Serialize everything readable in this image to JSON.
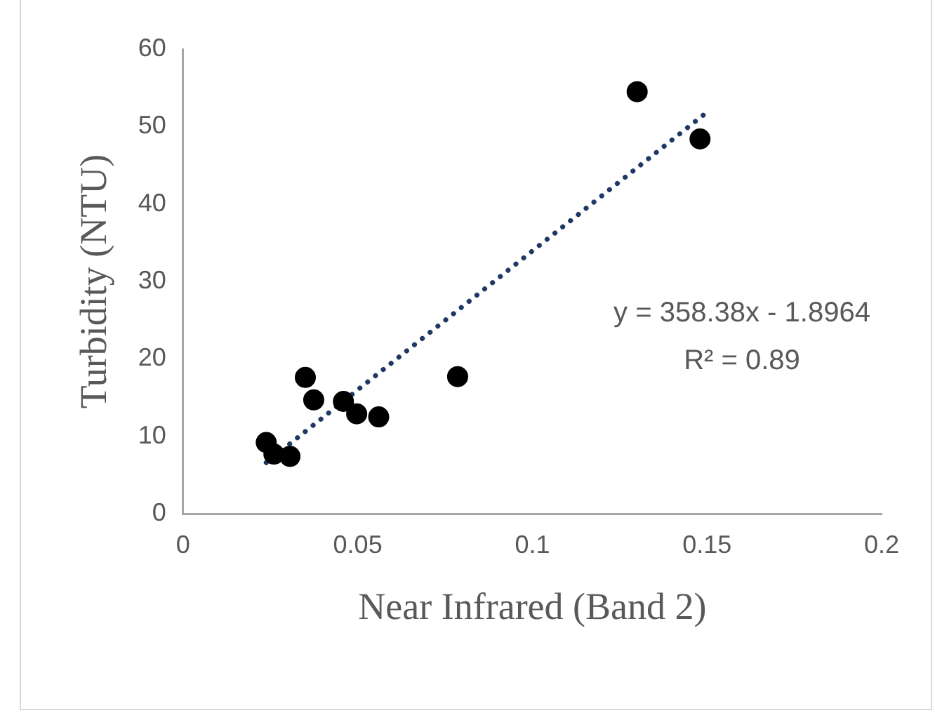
{
  "chart_data": {
    "type": "scatter",
    "xlabel": "Near Infrared (Band 2)",
    "ylabel": "Turbidity (NTU)",
    "x": [
      0.0238,
      0.026,
      0.0306,
      0.035,
      0.0374,
      0.0459,
      0.0497,
      0.056,
      0.0786,
      0.13,
      0.148
    ],
    "series": [
      {
        "type": "scatter",
        "color": "#000000",
        "values": [
          9.2,
          7.7,
          7.4,
          17.6,
          14.7,
          14.5,
          12.9,
          12.5,
          17.7,
          54.5,
          48.4
        ]
      },
      {
        "type": "line",
        "color": "#1f3864",
        "line_style": "dotted",
        "marker": "none",
        "x": [
          0.0238,
          0.149
        ],
        "values": [
          6.6,
          51.5
        ]
      }
    ],
    "marker": "circle",
    "xlim": [
      0,
      0.2
    ],
    "xticks": [
      0,
      0.05,
      0.1,
      0.15,
      0.2
    ],
    "ylim": [
      0,
      60
    ],
    "yticks": [
      0,
      10,
      20,
      30,
      40,
      50,
      60
    ],
    "grid": false,
    "legend": false,
    "annotations": [
      "y = 358.38x - 1.8964",
      "R² = 0.89"
    ]
  }
}
